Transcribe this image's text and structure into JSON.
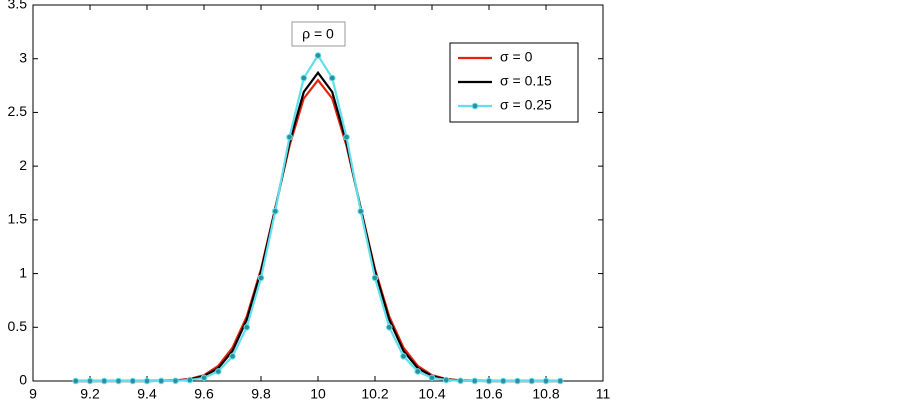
{
  "chart_data": {
    "type": "line",
    "annotation": "ρ = 0",
    "x": [
      9.15,
      9.2,
      9.25,
      9.3,
      9.35,
      9.4,
      9.45,
      9.5,
      9.55,
      9.6,
      9.65,
      9.7,
      9.75,
      9.8,
      9.85,
      9.9,
      9.95,
      10,
      10.05,
      10.1,
      10.15,
      10.2,
      10.25,
      10.3,
      10.35,
      10.4,
      10.45,
      10.5,
      10.55,
      10.6,
      10.65,
      10.7,
      10.75,
      10.8,
      10.85
    ],
    "series": [
      {
        "name": "σ = 0",
        "color": "#e8200c",
        "marker": false,
        "values": [
          0,
          0,
          0,
          0,
          0,
          0,
          0.002,
          0.006,
          0.019,
          0.054,
          0.14,
          0.31,
          0.6,
          1.04,
          1.61,
          2.19,
          2.63,
          2.8,
          2.63,
          2.19,
          1.61,
          1.04,
          0.6,
          0.31,
          0.14,
          0.054,
          0.019,
          0.006,
          0.002,
          0,
          0,
          0,
          0,
          0,
          0
        ]
      },
      {
        "name": "σ = 0.15",
        "color": "#000000",
        "marker": false,
        "values": [
          0,
          0,
          0,
          0,
          0,
          0,
          0.001,
          0.004,
          0.015,
          0.046,
          0.12,
          0.28,
          0.57,
          1.02,
          1.6,
          2.22,
          2.69,
          2.87,
          2.69,
          2.22,
          1.6,
          1.02,
          0.57,
          0.28,
          0.12,
          0.046,
          0.015,
          0.004,
          0.001,
          0,
          0,
          0,
          0,
          0,
          0
        ]
      },
      {
        "name": "σ = 0.25",
        "color": "#5fe0ee",
        "marker": true,
        "values": [
          0,
          0,
          0,
          0,
          0,
          0,
          0.001,
          0.002,
          0.009,
          0.03,
          0.089,
          0.23,
          0.5,
          0.96,
          1.58,
          2.27,
          2.82,
          3.03,
          2.82,
          2.27,
          1.58,
          0.96,
          0.5,
          0.23,
          0.089,
          0.03,
          0.009,
          0.002,
          0.001,
          0,
          0,
          0,
          0,
          0,
          0
        ]
      }
    ],
    "xlim": [
      9,
      11
    ],
    "xticks": [
      9,
      9.2,
      9.4,
      9.6,
      9.8,
      10,
      10.2,
      10.4,
      10.6,
      10.8,
      11
    ],
    "ylim": [
      0,
      3.5
    ],
    "yticks": [
      0,
      0.5,
      1,
      1.5,
      2,
      2.5,
      3,
      3.5
    ],
    "grid": false,
    "legend": "upper right"
  }
}
